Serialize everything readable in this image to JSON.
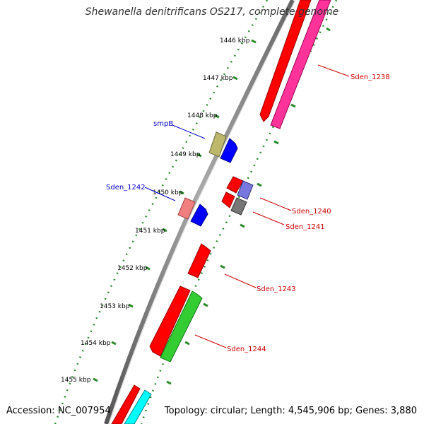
{
  "title": "Shewanella denitrificans OS217, complete genome",
  "accession": "Accession: NC_007954",
  "summary": "Topology: circular; Length: 4,545,906 bp; Genes: 3,880",
  "ticks": [
    "1446 kbp",
    "1447 kbp",
    "1448 kbp",
    "1449 kbp",
    "1450 kbp",
    "1451 kbp",
    "1452 kbp",
    "1453 kbp",
    "1454 kbp",
    "1455 kbp"
  ],
  "features": {
    "Sden_1238": {
      "label": "Sden_1238",
      "color": "#cc0000"
    },
    "Sden_1240": {
      "label": "Sden_1240",
      "color": "#cc0000"
    },
    "Sden_1241": {
      "label": "Sden_1241",
      "color": "#cc0000"
    },
    "Sden_1243": {
      "label": "Sden_1243",
      "color": "#cc0000"
    },
    "Sden_1244": {
      "label": "Sden_1244",
      "color": "#cc0000"
    },
    "smpB": {
      "label": "smpB",
      "color": "#0000cc"
    },
    "Sden_1242": {
      "label": "Sden_1242",
      "color": "#0000cc"
    }
  },
  "colors": {
    "backbone": "#888888",
    "dotted_ring": "#2e8b2e",
    "cds_red": "#ff0000",
    "cds_pink": "#ff3399",
    "cds_green": "#33cc33",
    "cds_blue": "#0000ff",
    "cds_khaki": "#bdb76b",
    "cds_lightred": "#f08080",
    "cds_purple": "#7777dd",
    "cds_gray": "#777777",
    "cds_cyan": "#00ffff"
  }
}
